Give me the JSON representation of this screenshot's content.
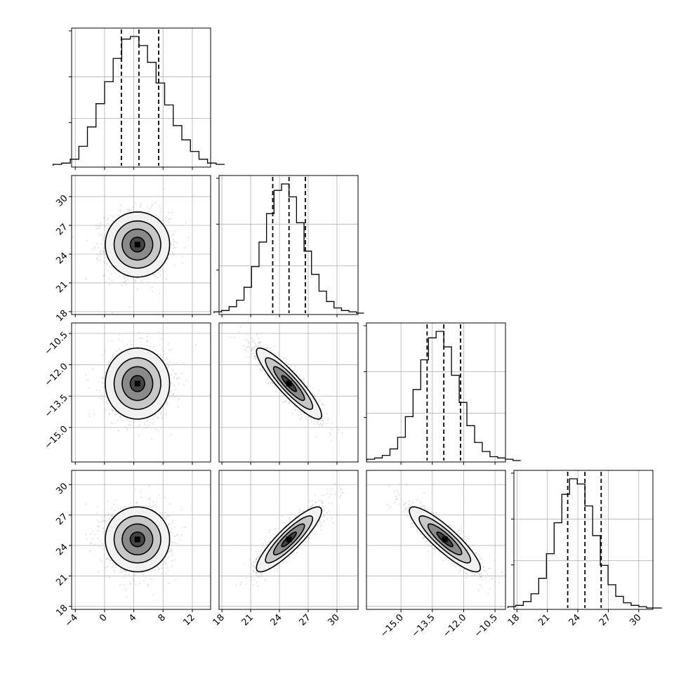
{
  "chart_data": {
    "type": "corner",
    "parameters": [
      {
        "range": [
          -4.5,
          14.5
        ],
        "ticks": [
          "-4",
          "0",
          "4",
          "8",
          "12"
        ],
        "quantiles": [
          2.3,
          4.7,
          7.4
        ]
      },
      {
        "range": [
          17.7,
          32.2
        ],
        "ticks": [
          "18",
          "21",
          "24",
          "27",
          "30"
        ],
        "quantiles": [
          23.3,
          25.0,
          26.7
        ]
      },
      {
        "range": [
          -16.65,
          -10.0
        ],
        "ticks": [
          "-15.0",
          "-13.5",
          "-12.0",
          "-10.5"
        ],
        "quantiles": [
          -13.75,
          -12.95,
          -12.15
        ]
      },
      {
        "range": [
          17.7,
          31.4
        ],
        "ticks": [
          "18",
          "21",
          "24",
          "27",
          "30"
        ],
        "quantiles": [
          23.0,
          24.7,
          26.3
        ]
      }
    ],
    "histograms": [
      {
        "bins": 20,
        "counts": [
          0.01,
          0.02,
          0.05,
          0.15,
          0.3,
          0.48,
          0.65,
          0.83,
          0.98,
          1.0,
          0.93,
          0.8,
          0.64,
          0.47,
          0.31,
          0.2,
          0.11,
          0.05,
          0.02,
          0.01
        ]
      },
      {
        "bins": 20,
        "counts": [
          0.01,
          0.02,
          0.05,
          0.1,
          0.2,
          0.36,
          0.55,
          0.77,
          0.95,
          1.0,
          0.9,
          0.7,
          0.48,
          0.3,
          0.17,
          0.09,
          0.04,
          0.02,
          0.01,
          0.0
        ]
      },
      {
        "bins": 20,
        "counts": [
          0.01,
          0.02,
          0.04,
          0.09,
          0.18,
          0.34,
          0.55,
          0.78,
          0.95,
          1.0,
          0.88,
          0.66,
          0.45,
          0.27,
          0.14,
          0.07,
          0.03,
          0.02,
          0.01,
          0.0
        ]
      },
      {
        "bins": 20,
        "counts": [
          0.01,
          0.02,
          0.05,
          0.11,
          0.23,
          0.42,
          0.66,
          0.88,
          1.0,
          0.96,
          0.79,
          0.56,
          0.33,
          0.18,
          0.09,
          0.04,
          0.02,
          0.01,
          0.0,
          0.0
        ]
      }
    ],
    "pairs": [
      {
        "row": 1,
        "col": 0,
        "mean": [
          4.5,
          25.0
        ],
        "sd": [
          2.2,
          1.7
        ],
        "rho": 0.0
      },
      {
        "row": 2,
        "col": 0,
        "mean": [
          4.5,
          -12.9
        ],
        "sd": [
          2.2,
          0.85
        ],
        "rho": 0.0
      },
      {
        "row": 2,
        "col": 1,
        "mean": [
          25.0,
          -12.9
        ],
        "sd": [
          1.7,
          0.85
        ],
        "rho": -0.9
      },
      {
        "row": 3,
        "col": 0,
        "mean": [
          4.5,
          24.6
        ],
        "sd": [
          2.2,
          1.6
        ],
        "rho": 0.0
      },
      {
        "row": 3,
        "col": 1,
        "mean": [
          25.0,
          24.6
        ],
        "sd": [
          1.7,
          1.6
        ],
        "rho": 0.88
      },
      {
        "row": 3,
        "col": 2,
        "mean": [
          -12.9,
          24.6
        ],
        "sd": [
          0.85,
          1.6
        ],
        "rho": -0.88
      }
    ],
    "grid": true,
    "colors": {
      "line": "#000000",
      "grid": "#b0b0b0",
      "scatter": "#bdbdbd",
      "density": "#000000"
    }
  }
}
